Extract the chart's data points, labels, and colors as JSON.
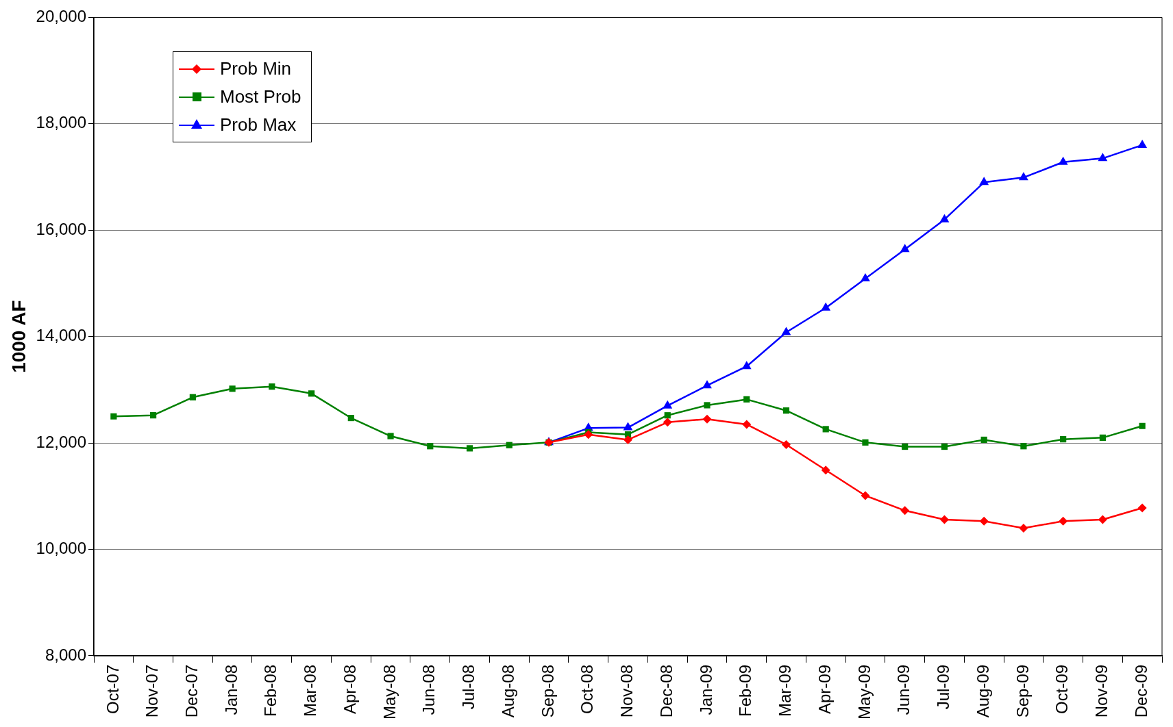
{
  "chart_data": {
    "type": "line",
    "ylabel": "1000 AF",
    "categories": [
      "Oct-07",
      "Nov-07",
      "Dec-07",
      "Jan-08",
      "Feb-08",
      "Mar-08",
      "Apr-08",
      "May-08",
      "Jun-08",
      "Jul-08",
      "Aug-08",
      "Sep-08",
      "Oct-08",
      "Nov-08",
      "Dec-08",
      "Jan-09",
      "Feb-09",
      "Mar-09",
      "Apr-09",
      "May-09",
      "Jun-09",
      "Jul-09",
      "Aug-09",
      "Sep-09",
      "Oct-09",
      "Nov-09",
      "Dec-09"
    ],
    "series": [
      {
        "name": "Prob Min",
        "color": "#ff0000",
        "marker": "diamond",
        "values": [
          null,
          null,
          null,
          null,
          null,
          null,
          null,
          null,
          null,
          null,
          null,
          12010,
          12160,
          12060,
          12390,
          12450,
          12350,
          11970,
          11490,
          11010,
          10730,
          10560,
          10530,
          10400,
          10530,
          10560,
          10780
        ]
      },
      {
        "name": "Most Prob",
        "color": "#008000",
        "marker": "square",
        "values": [
          12500,
          12520,
          12860,
          13020,
          13060,
          12930,
          12470,
          12130,
          11940,
          11900,
          11960,
          12010,
          12200,
          12160,
          12520,
          12710,
          12820,
          12610,
          12260,
          12010,
          11930,
          11930,
          12060,
          11940,
          12070,
          12100,
          12320
        ]
      },
      {
        "name": "Prob Max",
        "color": "#0000ff",
        "marker": "triangle",
        "values": [
          null,
          null,
          null,
          null,
          null,
          null,
          null,
          null,
          null,
          null,
          null,
          12010,
          12280,
          12290,
          12700,
          13080,
          13440,
          14080,
          14540,
          15090,
          15640,
          16200,
          16900,
          16990,
          17280,
          17350,
          17600
        ]
      }
    ],
    "ylim": [
      8000,
      20000
    ],
    "yticks": [
      {
        "value": 8000,
        "label": "8,000"
      },
      {
        "value": 10000,
        "label": "10,000"
      },
      {
        "value": 12000,
        "label": "12,000"
      },
      {
        "value": 14000,
        "label": "14,000"
      },
      {
        "value": 16000,
        "label": "16,000"
      },
      {
        "value": 18000,
        "label": "18,000"
      },
      {
        "value": 20000,
        "label": "20,000"
      }
    ],
    "grid": "y",
    "legend": "top left"
  }
}
